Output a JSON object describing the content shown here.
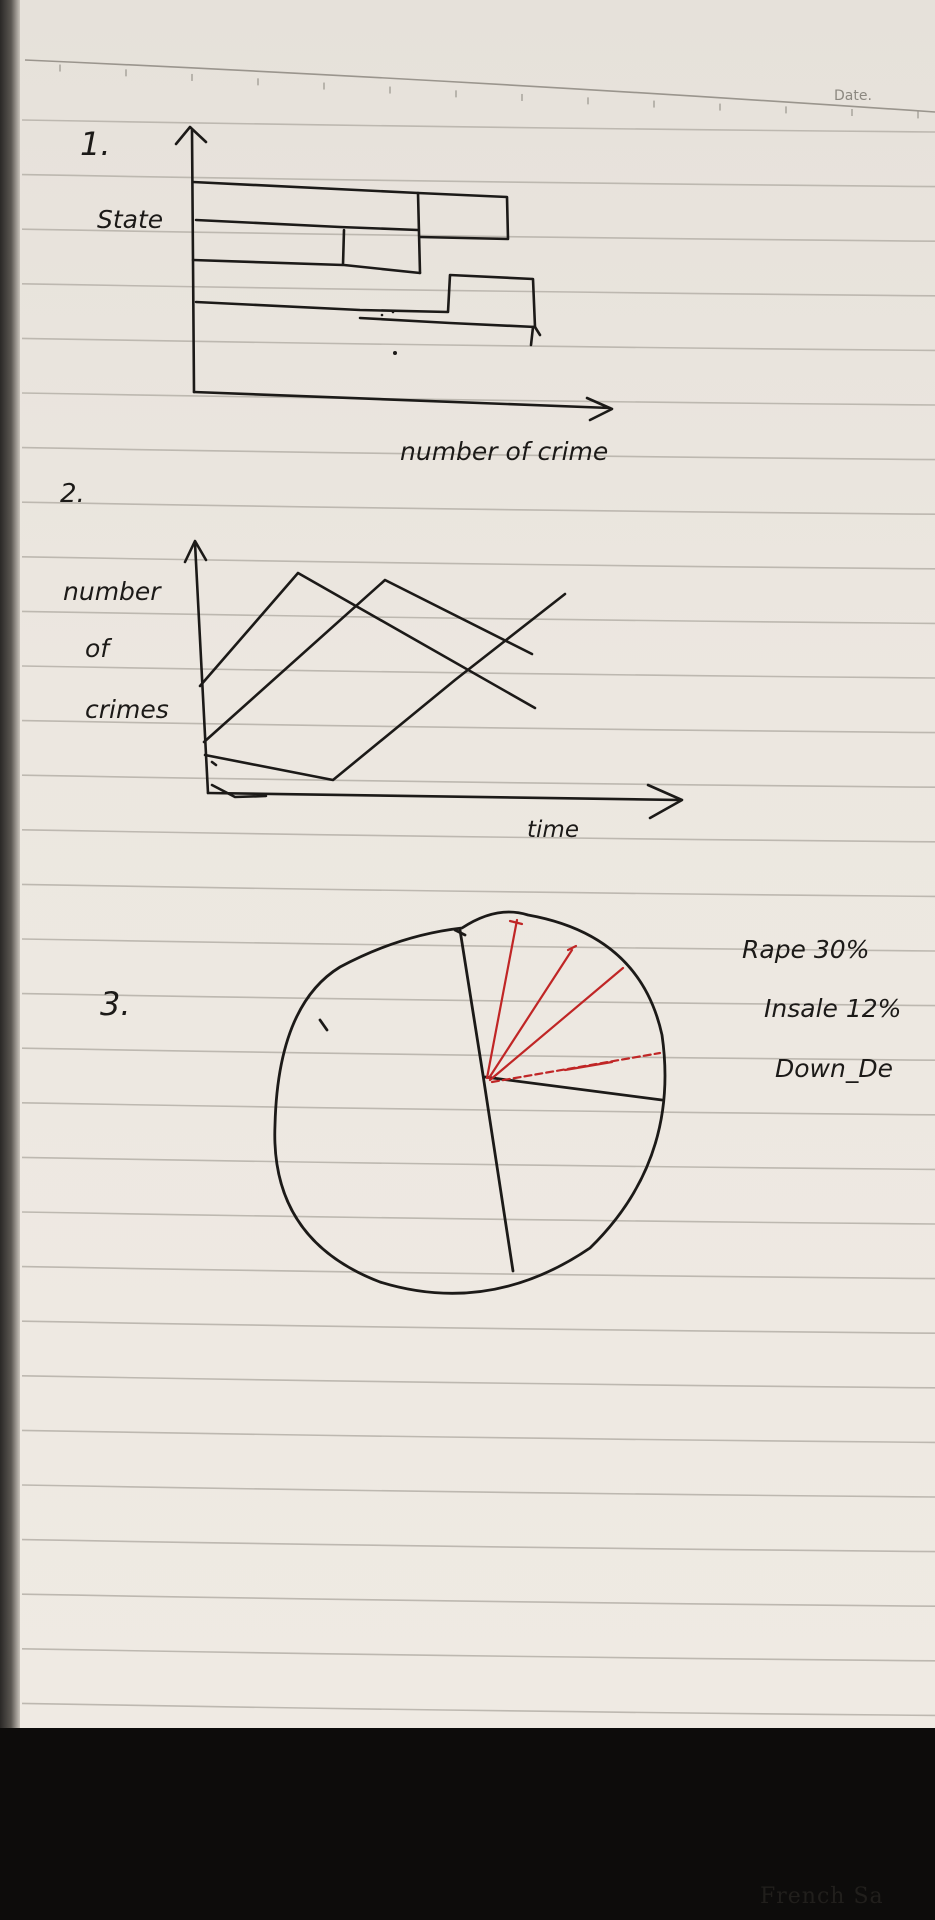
{
  "header": {
    "date_label": "Date."
  },
  "sketches": [
    {
      "number": "1.",
      "kind": "horizontal-bar-sketch",
      "y_label": "State",
      "x_label": "number of crime"
    },
    {
      "number": "2.",
      "kind": "line-sketch",
      "y_label_lines": [
        "number",
        "of",
        "crimes"
      ],
      "x_label": "time"
    },
    {
      "number": "3.",
      "kind": "pie-sketch",
      "legend": [
        "Rape 30%",
        "Insale 12%",
        "Down_De"
      ]
    }
  ],
  "colors": {
    "paper": "#ebe6df",
    "rule_line": "#bdb8b0",
    "ink": "#1c1a18",
    "red_ink": "#c02626",
    "surface": "#0d0c0b"
  },
  "footer": {
    "surface_text": "French Sa"
  }
}
